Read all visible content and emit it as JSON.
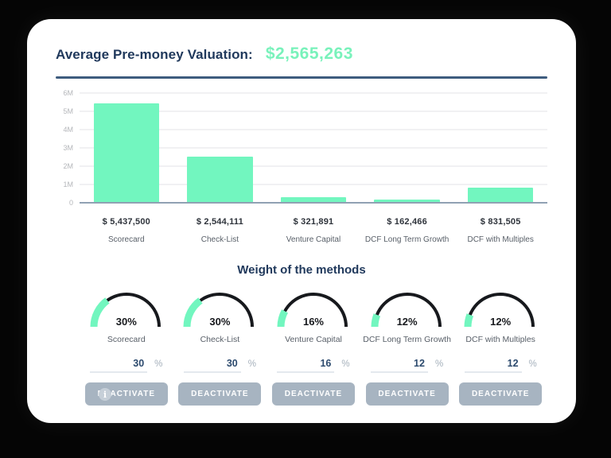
{
  "header": {
    "title": "Average Pre-money Valuation:",
    "value": "$2,565,263"
  },
  "colors": {
    "accent_green": "#72f6bf",
    "navy": "#20395c",
    "button_gray": "#a7b4c1",
    "divider_blue": "#3e5c7e"
  },
  "chart": {
    "y_ticks": [
      "6M",
      "5M",
      "4M",
      "3M",
      "2M",
      "1M",
      "0"
    ],
    "y_max": 6000000
  },
  "chart_data": [
    {
      "type": "bar",
      "categories": [
        "Scorecard",
        "Check-List",
        "Venture Capital",
        "DCF Long Term Growth",
        "DCF with Multiples"
      ],
      "values": [
        5437500,
        2544111,
        321891,
        162466,
        831505
      ],
      "value_labels": [
        "$ 5,437,500",
        "$ 2,544,111",
        "$ 321,891",
        "$ 162,466",
        "$ 831,505"
      ],
      "title": "",
      "xlabel": "",
      "ylabel": "",
      "ylim": [
        0,
        6000000
      ],
      "y_tick_labels": [
        "0",
        "1M",
        "2M",
        "3M",
        "4M",
        "5M",
        "6M"
      ],
      "grid": true,
      "bar_color": "#72f6bf"
    },
    {
      "type": "pie",
      "subtype": "half-donut-gauges",
      "title": "Weight of the methods",
      "categories": [
        "Scorecard",
        "Check-List",
        "Venture Capital",
        "DCF Long Term Growth",
        "DCF with Multiples"
      ],
      "values": [
        30,
        30,
        16,
        12,
        12
      ],
      "unit": "%",
      "filled_color": "#72f6bf",
      "track_color": "#17191d"
    }
  ],
  "methods": [
    {
      "name": "Scorecard",
      "valuation_label": "$ 5,437,500",
      "valuation": 5437500,
      "weight_pct": 30,
      "weight_pct_label": "30%",
      "weight_input": "30"
    },
    {
      "name": "Check-List",
      "valuation_label": "$ 2,544,111",
      "valuation": 2544111,
      "weight_pct": 30,
      "weight_pct_label": "30%",
      "weight_input": "30"
    },
    {
      "name": "Venture Capital",
      "valuation_label": "$ 321,891",
      "valuation": 321891,
      "weight_pct": 16,
      "weight_pct_label": "16%",
      "weight_input": "16"
    },
    {
      "name": "DCF Long Term Growth",
      "valuation_label": "$ 162,466",
      "valuation": 162466,
      "weight_pct": 12,
      "weight_pct_label": "12%",
      "weight_input": "12"
    },
    {
      "name": "DCF with Multiples",
      "valuation_label": "$ 831,505",
      "valuation": 831505,
      "weight_pct": 12,
      "weight_pct_label": "12%",
      "weight_input": "12"
    }
  ],
  "weights_section": {
    "heading": "Weight of the methods",
    "percent_sign": "%",
    "deactivate_label": "DEACTIVATE",
    "info_icon_glyph": "i"
  }
}
